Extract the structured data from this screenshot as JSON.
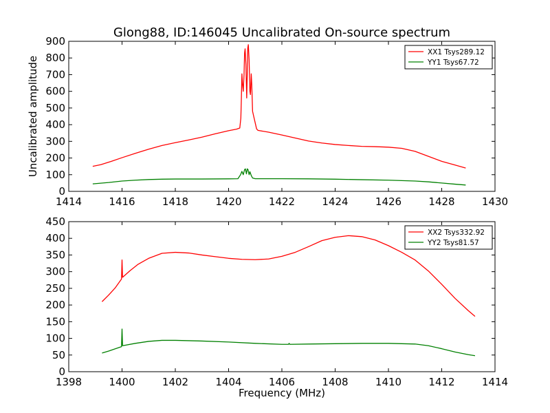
{
  "figure_title": "Glong88, ID:146045 Uncalibrated On-source spectrum",
  "chart_data": [
    {
      "type": "line",
      "id": "top",
      "ylabel": "Uncalibrated amplitude",
      "xlabel": "",
      "xlim": [
        1414,
        1430
      ],
      "ylim": [
        0,
        900
      ],
      "xticks": [
        1414,
        1416,
        1418,
        1420,
        1422,
        1424,
        1426,
        1428,
        1430
      ],
      "yticks": [
        0,
        100,
        200,
        300,
        400,
        500,
        600,
        700,
        800,
        900
      ],
      "legend": "top-right",
      "series": [
        {
          "name": "XX1 Tsys289.12",
          "color": "#ff0000",
          "points": [
            [
              1414.9,
              150
            ],
            [
              1415.2,
              160
            ],
            [
              1415.6,
              180
            ],
            [
              1416.0,
              202
            ],
            [
              1416.5,
              228
            ],
            [
              1417.0,
              253
            ],
            [
              1417.5,
              275
            ],
            [
              1418.0,
              292
            ],
            [
              1418.5,
              308
            ],
            [
              1419.0,
              325
            ],
            [
              1419.5,
              345
            ],
            [
              1420.0,
              364
            ],
            [
              1420.3,
              373
            ],
            [
              1420.42,
              380
            ],
            [
              1420.46,
              440
            ],
            [
              1420.48,
              560
            ],
            [
              1420.5,
              705
            ],
            [
              1420.52,
              650
            ],
            [
              1420.55,
              600
            ],
            [
              1420.58,
              700
            ],
            [
              1420.6,
              830
            ],
            [
              1420.62,
              855
            ],
            [
              1420.65,
              760
            ],
            [
              1420.68,
              560
            ],
            [
              1420.7,
              700
            ],
            [
              1420.72,
              860
            ],
            [
              1420.74,
              880
            ],
            [
              1420.77,
              790
            ],
            [
              1420.8,
              600
            ],
            [
              1420.82,
              580
            ],
            [
              1420.85,
              705
            ],
            [
              1420.87,
              640
            ],
            [
              1420.9,
              480
            ],
            [
              1420.95,
              445
            ],
            [
              1421.0,
              410
            ],
            [
              1421.05,
              375
            ],
            [
              1421.1,
              366
            ],
            [
              1421.5,
              355
            ],
            [
              1422.0,
              338
            ],
            [
              1422.5,
              320
            ],
            [
              1423.0,
              302
            ],
            [
              1423.5,
              290
            ],
            [
              1424.0,
              281
            ],
            [
              1424.5,
              275
            ],
            [
              1425.0,
              270
            ],
            [
              1425.5,
              268
            ],
            [
              1426.0,
              265
            ],
            [
              1426.5,
              258
            ],
            [
              1427.0,
              240
            ],
            [
              1427.5,
              210
            ],
            [
              1428.0,
              180
            ],
            [
              1428.5,
              158
            ],
            [
              1428.9,
              140
            ]
          ]
        },
        {
          "name": "YY1 Tsys67.72",
          "color": "#008000",
          "points": [
            [
              1414.9,
              45
            ],
            [
              1415.5,
              53
            ],
            [
              1416.0,
              62
            ],
            [
              1416.5,
              67
            ],
            [
              1417.0,
              71
            ],
            [
              1417.5,
              73
            ],
            [
              1418.0,
              74
            ],
            [
              1419.0,
              74
            ],
            [
              1420.0,
              75
            ],
            [
              1420.35,
              76
            ],
            [
              1420.45,
              100
            ],
            [
              1420.5,
              120
            ],
            [
              1420.55,
              100
            ],
            [
              1420.6,
              130
            ],
            [
              1420.63,
              135
            ],
            [
              1420.67,
              105
            ],
            [
              1420.7,
              135
            ],
            [
              1420.73,
              130
            ],
            [
              1420.77,
              100
            ],
            [
              1420.8,
              118
            ],
            [
              1420.85,
              95
            ],
            [
              1420.9,
              80
            ],
            [
              1421.0,
              76
            ],
            [
              1422.0,
              76
            ],
            [
              1423.0,
              75
            ],
            [
              1424.0,
              73
            ],
            [
              1425.0,
              70
            ],
            [
              1426.0,
              67
            ],
            [
              1427.0,
              62
            ],
            [
              1427.5,
              57
            ],
            [
              1428.0,
              50
            ],
            [
              1428.5,
              43
            ],
            [
              1428.9,
              38
            ]
          ]
        }
      ]
    },
    {
      "type": "line",
      "id": "bottom",
      "ylabel": "",
      "xlabel": "Frequency (MHz)",
      "xlim": [
        1398,
        1414
      ],
      "ylim": [
        0,
        450
      ],
      "xticks": [
        1398,
        1400,
        1402,
        1404,
        1406,
        1408,
        1410,
        1412,
        1414
      ],
      "yticks": [
        0,
        50,
        100,
        150,
        200,
        250,
        300,
        350,
        400,
        450
      ],
      "legend": "top-right",
      "series": [
        {
          "name": "XX2 Tsys332.92",
          "color": "#ff0000",
          "points": [
            [
              1399.25,
              210
            ],
            [
              1399.5,
              230
            ],
            [
              1399.75,
              252
            ],
            [
              1399.98,
              278
            ],
            [
              1400.0,
              335
            ],
            [
              1400.02,
              283
            ],
            [
              1400.3,
              303
            ],
            [
              1400.6,
              322
            ],
            [
              1401.0,
              340
            ],
            [
              1401.5,
              355
            ],
            [
              1402.0,
              358
            ],
            [
              1402.5,
              356
            ],
            [
              1403.0,
              350
            ],
            [
              1403.5,
              345
            ],
            [
              1404.0,
              340
            ],
            [
              1404.5,
              337
            ],
            [
              1405.0,
              336
            ],
            [
              1405.5,
              338
            ],
            [
              1406.0,
              346
            ],
            [
              1406.5,
              358
            ],
            [
              1407.0,
              375
            ],
            [
              1407.5,
              393
            ],
            [
              1408.0,
              403
            ],
            [
              1408.5,
              408
            ],
            [
              1409.0,
              405
            ],
            [
              1409.5,
              395
            ],
            [
              1410.0,
              378
            ],
            [
              1410.5,
              358
            ],
            [
              1411.0,
              335
            ],
            [
              1411.5,
              302
            ],
            [
              1412.0,
              262
            ],
            [
              1412.5,
              220
            ],
            [
              1413.0,
              183
            ],
            [
              1413.25,
              166
            ]
          ]
        },
        {
          "name": "YY2 Tsys81.57",
          "color": "#008000",
          "points": [
            [
              1399.25,
              56
            ],
            [
              1399.5,
              62
            ],
            [
              1399.98,
              75
            ],
            [
              1400.0,
              128
            ],
            [
              1400.02,
              78
            ],
            [
              1400.5,
              85
            ],
            [
              1401.0,
              91
            ],
            [
              1401.5,
              94
            ],
            [
              1402.0,
              94
            ],
            [
              1403.0,
              92
            ],
            [
              1404.0,
              89
            ],
            [
              1405.0,
              85
            ],
            [
              1406.0,
              82
            ],
            [
              1406.25,
              82
            ],
            [
              1406.27,
              85
            ],
            [
              1406.3,
              82
            ],
            [
              1407.0,
              83
            ],
            [
              1408.0,
              84
            ],
            [
              1409.0,
              85
            ],
            [
              1410.0,
              85
            ],
            [
              1411.0,
              83
            ],
            [
              1411.5,
              78
            ],
            [
              1412.0,
              69
            ],
            [
              1412.5,
              59
            ],
            [
              1413.0,
              51
            ],
            [
              1413.25,
              48
            ]
          ]
        }
      ]
    }
  ]
}
